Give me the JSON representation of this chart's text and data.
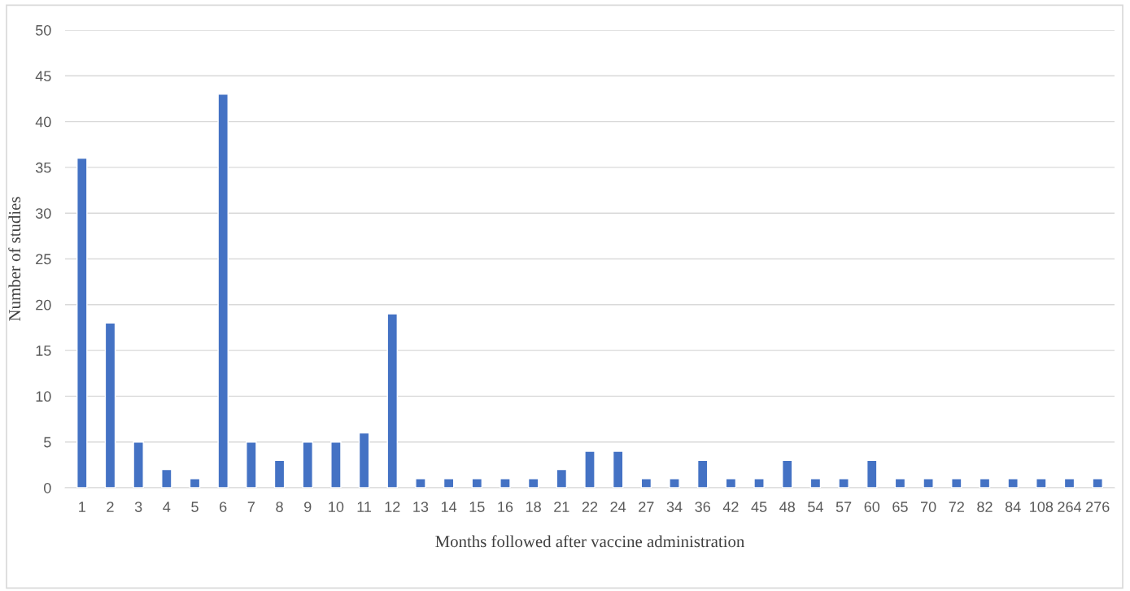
{
  "chart_data": {
    "type": "bar",
    "xlabel": "Months followed after vaccine administration",
    "ylabel": "Number of studies",
    "categories": [
      "1",
      "2",
      "3",
      "4",
      "5",
      "6",
      "7",
      "8",
      "9",
      "10",
      "11",
      "12",
      "13",
      "14",
      "15",
      "16",
      "18",
      "21",
      "22",
      "24",
      "27",
      "34",
      "36",
      "42",
      "45",
      "48",
      "54",
      "57",
      "60",
      "65",
      "70",
      "72",
      "82",
      "84",
      "108",
      "264",
      "276"
    ],
    "values": [
      36,
      18,
      5,
      2,
      1,
      43,
      5,
      3,
      5,
      5,
      6,
      19,
      1,
      1,
      1,
      1,
      1,
      2,
      4,
      4,
      1,
      1,
      3,
      1,
      1,
      3,
      1,
      1,
      3,
      1,
      1,
      1,
      1,
      1,
      1,
      1,
      1
    ],
    "color": "#4472c4",
    "ylim": [
      0,
      50
    ],
    "yticks": [
      0,
      5,
      10,
      15,
      20,
      25,
      30,
      35,
      40,
      45,
      50
    ],
    "grid": "y",
    "legend": false
  }
}
